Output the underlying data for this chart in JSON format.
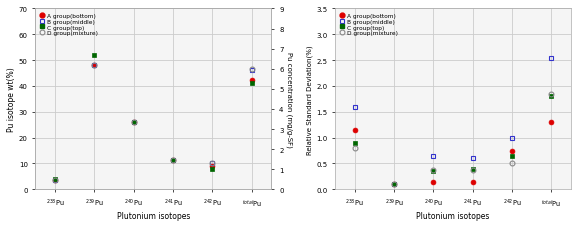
{
  "x_labels": [
    "$^{238}$Pu",
    "$^{239}$Pu",
    "$^{240}$Pu",
    "$^{241}$Pu",
    "$^{242}$Pu",
    "$^{total}$Pu"
  ],
  "x_positions": [
    0,
    1,
    2,
    3,
    4,
    5
  ],
  "left": {
    "ylabel_left": "Pu isotope wt(%)",
    "ylabel_right": "Pu concentration (mg/g-SF)",
    "ylim_left": [
      0,
      70
    ],
    "ylim_right": [
      0,
      9
    ],
    "yticks_left": [
      0,
      10,
      20,
      30,
      40,
      50,
      60,
      70
    ],
    "yticks_right": [
      0,
      1,
      2,
      3,
      4,
      5,
      6,
      7,
      8,
      9
    ],
    "A": [
      3.8,
      48.0,
      26.0,
      11.2,
      9.0,
      42.5
    ],
    "B": [
      3.8,
      48.2,
      26.0,
      11.2,
      10.0,
      46.0
    ],
    "C": [
      4.0,
      52.0,
      26.0,
      11.5,
      8.0,
      41.0
    ],
    "D": [
      3.8,
      48.0,
      26.0,
      11.2,
      10.0,
      46.5
    ]
  },
  "right": {
    "ylabel": "Relative Standard Deviation(%)",
    "ylim": [
      0,
      3.5
    ],
    "yticks": [
      0,
      0.5,
      1.0,
      1.5,
      2.0,
      2.5,
      3.0,
      3.5
    ],
    "A": [
      1.15,
      0.1,
      0.15,
      0.15,
      0.75,
      1.3
    ],
    "B": [
      1.6,
      0.1,
      0.65,
      0.6,
      1.0,
      2.55
    ],
    "C": [
      0.9,
      0.1,
      0.35,
      0.4,
      0.65,
      1.8
    ],
    "D": [
      0.8,
      0.1,
      0.37,
      0.38,
      0.5,
      1.85
    ]
  },
  "xlabel": "Plutonium isotopes",
  "legend_labels": [
    "A group(bottom)",
    "B group(middle)",
    "C group(top)",
    "D group(mixture)"
  ],
  "colors": {
    "A": "#dd0000",
    "B": "#3333cc",
    "C": "#006600",
    "D": "#888888"
  },
  "bg_color": "#ffffff",
  "plot_bg": "#f5f5f5",
  "grid_color": "#cccccc"
}
